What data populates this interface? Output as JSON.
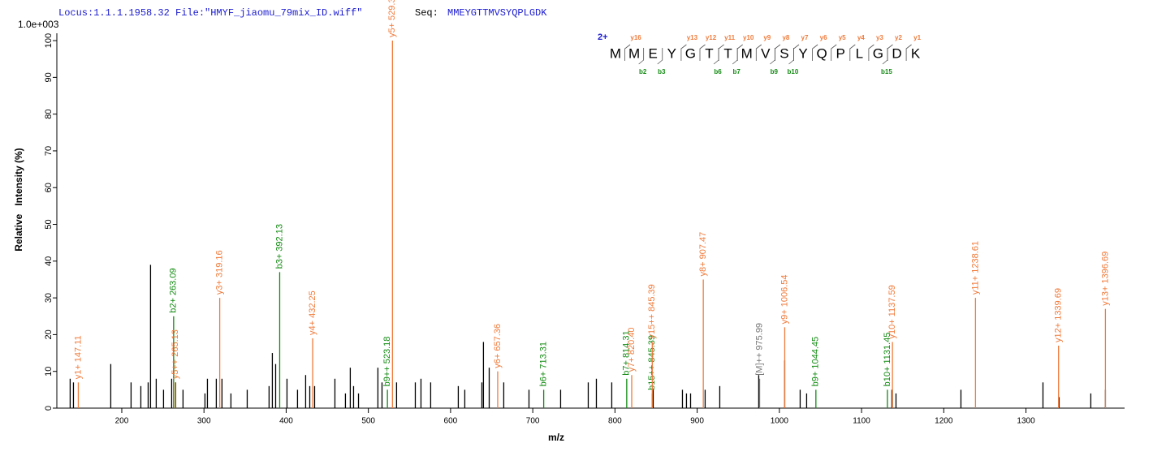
{
  "chart_data": {
    "type": "spectrum",
    "header": {
      "locus": "Locus:1.1.1.1958.32 File:\"HMYF_jiaomu_79mix_ID.wiff\"",
      "seq_label": "Seq:",
      "seq": "MMEYGTTMVSYQPLGDK"
    },
    "scale_label": "1.0e+003",
    "x_label": "m/z",
    "y_label": "Relative   Intensity (%)",
    "xlim": [
      121,
      1420
    ],
    "ylim": [
      0,
      102
    ],
    "xticks": [
      200,
      300,
      400,
      500,
      600,
      700,
      800,
      900,
      1000,
      1100,
      1200,
      1300
    ],
    "yticks": [
      0,
      10,
      20,
      30,
      40,
      50,
      60,
      70,
      80,
      90,
      100
    ],
    "peaks": {
      "color": "#000000",
      "x": [
        137.2,
        141.2,
        186.6,
        211.3,
        223.2,
        232.1,
        235.0,
        241.9,
        250.8,
        260.7,
        265.6,
        274.5,
        301.2,
        304.2,
        315.0,
        321.9,
        332.8,
        352.6,
        379.2,
        383.2,
        387.2,
        401.0,
        413.8,
        423.7,
        428.7,
        434.6,
        459.3,
        472.1,
        478.0,
        482.0,
        488.0,
        511.6,
        516.6,
        534.3,
        557.1,
        564.0,
        575.8,
        609.4,
        617.3,
        638.1,
        640.0,
        647.0,
        664.7,
        695.4,
        733.9,
        767.5,
        777.4,
        796.1,
        846.5,
        882.1,
        887.0,
        892.0,
        909.7,
        927.5,
        974.9,
        1006.5,
        1025.3,
        1033.2,
        1136.9,
        1141.9,
        1220.9,
        1320.7,
        1340.4,
        1378.9,
        1396.7
      ],
      "values": [
        8,
        7,
        12,
        7,
        6,
        7,
        39,
        8,
        5,
        8,
        7,
        5,
        4,
        8,
        8,
        8,
        4,
        5,
        6,
        15,
        12,
        8,
        5,
        9,
        6,
        6,
        8,
        4,
        11,
        6,
        4,
        11,
        7,
        7,
        7,
        8,
        7,
        6,
        5,
        7,
        18,
        11,
        7,
        5,
        5,
        7,
        8,
        7,
        5,
        5,
        4,
        4,
        5,
        6,
        9,
        13,
        5,
        4,
        5,
        4,
        5,
        7,
        3,
        4,
        5
      ]
    },
    "annotated": {
      "x": [
        147.11,
        263.09,
        265.13,
        319.16,
        392.13,
        432.25,
        523.18,
        529.3,
        657.36,
        713.31,
        814.31,
        820.4,
        845.39,
        845.39,
        907.47,
        975.99,
        1006.54,
        1044.45,
        1131.45,
        1137.59,
        1238.61,
        1339.69,
        1396.69
      ],
      "values": [
        7,
        25,
        7,
        30,
        37,
        19,
        5,
        100,
        10,
        5,
        8,
        9,
        4,
        18,
        35,
        8,
        22,
        5,
        5,
        18,
        30,
        17,
        27
      ],
      "labels": [
        "y1+ 147.11",
        "b2+ 263.09",
        "y5++ 265.13",
        "y3+ 319.16",
        "b3+ 392.13",
        "y4+ 432.25",
        "b9++ 523.18",
        "y5+ 529.30",
        "y6+ 657.36",
        "b6+ 713.31",
        "b7+ 814.31",
        "y7+ 820.40",
        "b15++ 845.39",
        "y15++ 845.39",
        "y8+ 907.47",
        "[M]++ 975.99",
        "y9+ 1006.54",
        "b9+ 1044.45",
        "b10+ 1131.45",
        "y10+ 1137.59",
        "y11+ 1238.61",
        "y12+ 1339.69",
        "y13+ 1396.69"
      ],
      "colors": [
        "#f07a3a",
        "#118a11",
        "#f07a3a",
        "#f07a3a",
        "#118a11",
        "#f07a3a",
        "#118a11",
        "#f07a3a",
        "#f07a3a",
        "#118a11",
        "#118a11",
        "#f07a3a",
        "#118a11",
        "#f07a3a",
        "#f07a3a",
        "#777777",
        "#f07a3a",
        "#118a11",
        "#118a11",
        "#f07a3a",
        "#f07a3a",
        "#f07a3a",
        "#f07a3a"
      ]
    },
    "sequence_panel": {
      "charge": "2+",
      "residues": [
        "M",
        "M",
        "E",
        "Y",
        "G",
        "T",
        "T",
        "M",
        "V",
        "S",
        "Y",
        "Q",
        "P",
        "L",
        "G",
        "D",
        "K"
      ],
      "y_ions": [
        "y16",
        "y13",
        "y12",
        "y11",
        "y10",
        "y9",
        "y8",
        "y7",
        "y6",
        "y5",
        "y4",
        "y3",
        "y2",
        "y1"
      ],
      "b_ions": [
        "b2",
        "b3",
        "b6",
        "b7",
        "b9",
        "b10",
        "b15"
      ]
    }
  }
}
